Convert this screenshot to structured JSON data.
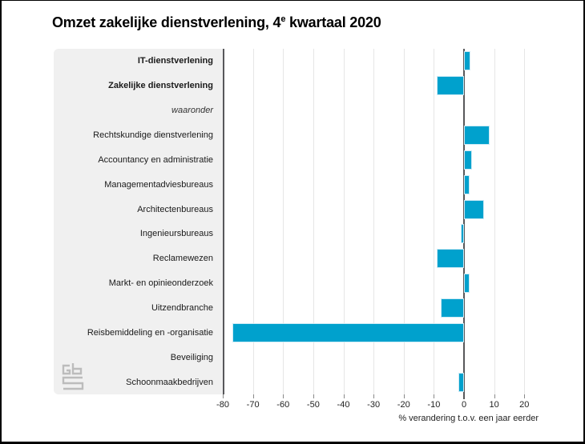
{
  "title": {
    "prefix": "Omzet zakelijke dienstverlening, 4",
    "superscript": "e",
    "suffix": " kwartaal 2020"
  },
  "chart_data": {
    "type": "bar",
    "orientation": "horizontal",
    "title": "Omzet zakelijke dienstverlening, 4e kwartaal 2020",
    "categories": [
      "IT-dienstverlening",
      "Zakelijke dienstverlening",
      "waaronder",
      "Rechtskundige dienstverlening",
      "Accountancy en administratie",
      "Managementadviesbureaus",
      "Architectenbureaus",
      "Ingenieursbureaus",
      "Reclamewezen",
      "Markt- en opinieonderzoek",
      "Uitzendbranche",
      "Reisbemiddeling en -organisatie",
      "Beveiliging",
      "Schoonmaakbedrijven"
    ],
    "category_styles": [
      "bold",
      "bold",
      "italic",
      "normal",
      "normal",
      "normal",
      "normal",
      "normal",
      "normal",
      "normal",
      "normal",
      "normal",
      "normal",
      "normal"
    ],
    "values": [
      1.6,
      -8.5,
      null,
      8.0,
      2.2,
      1.4,
      6.0,
      -0.4,
      -8.5,
      1.4,
      -7.2,
      -76.4,
      0.0,
      -1.4
    ],
    "xlabel": "% verandering t.o.v. een jaar eerder",
    "xlim": [
      -80,
      31
    ],
    "xticks": [
      -80,
      -70,
      -60,
      -50,
      -40,
      -30,
      -20,
      -10,
      0,
      10,
      20
    ],
    "grid": true,
    "legend": "none",
    "bar_color": "#00a1cd",
    "zero_line_color": "#58585a",
    "grid_color": "#e6e6e6",
    "panel_color": "#f0f0f0"
  },
  "branding": {
    "logo": "cbs-logo"
  }
}
